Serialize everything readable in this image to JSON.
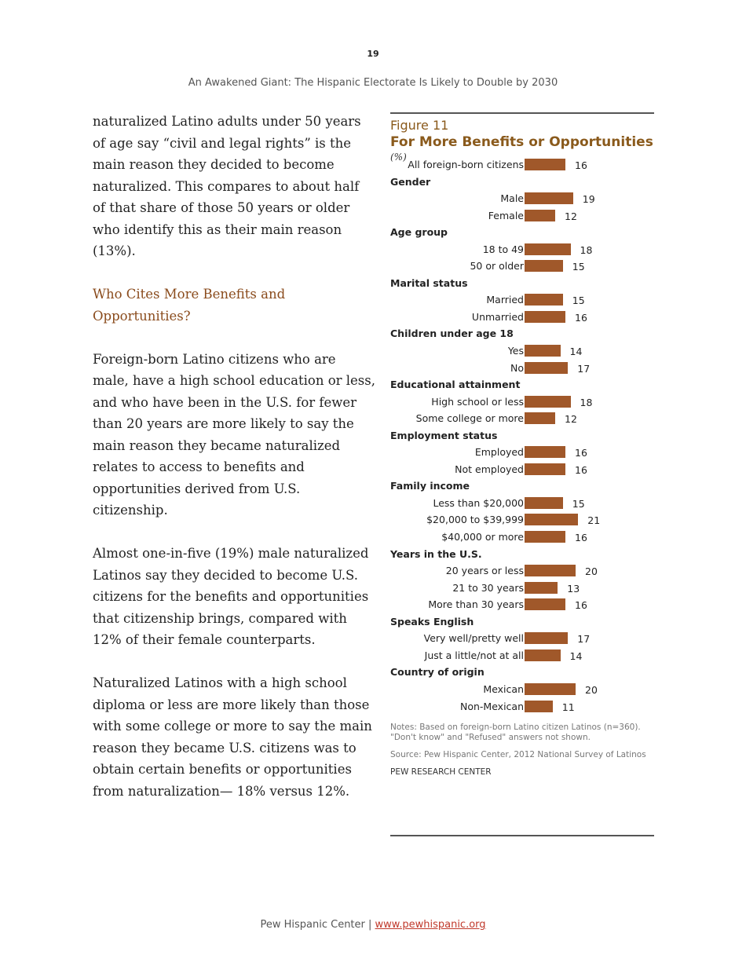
{
  "page_number": "19",
  "running_head": "An Awakened Giant: The Hispanic Electorate Is Likely to Double by 2030",
  "body": {
    "p1": "naturalized Latino adults under 50 years of age say “civil and legal rights” is the main reason they decided to become naturalized. This compares to about half of that share of those 50 years or older who identify this as their main reason (13%).",
    "subheading": "Who Cites More Benefits and Opportunities?",
    "p2": "Foreign-born Latino citizens who are male, have a high school education or less, and who have been in the U.S. for fewer than 20 years are more likely to say the main reason they became naturalized relates to access to benefits and opportunities derived from U.S. citizenship.",
    "p3": "Almost one-in-five (19%) male naturalized Latinos say they decided to become U.S. citizens for the benefits and opportunities that citizenship brings, compared with 12% of their female counterparts.",
    "p4": "Naturalized Latinos with a high school diploma or less are more likely than those with some college or more to say the main reason they became U.S. citizens was to obtain certain benefits or opportunities from naturalization— 18% versus 12%."
  },
  "figure": {
    "label": "Figure 11",
    "title": "For More Benefits or Opportunities",
    "unit": "(%)",
    "notes": "Notes: Based on foreign-born Latino citizen Latinos (n=360). \"Don't know\" and \"Refused\" answers not shown.",
    "source": "Source: Pew Hispanic Center, 2012 National Survey of Latinos",
    "org": "PEW RESEARCH CENTER"
  },
  "chart_data": {
    "type": "bar",
    "orientation": "horizontal",
    "bar_color": "#a0582a",
    "rows": [
      {
        "label": "All foreign-born citizens",
        "value": 16
      },
      {
        "header": "Gender"
      },
      {
        "label": "Male",
        "value": 19
      },
      {
        "label": "Female",
        "value": 12
      },
      {
        "header": "Age group"
      },
      {
        "label": "18 to 49",
        "value": 18
      },
      {
        "label": "50 or older",
        "value": 15
      },
      {
        "header": "Marital status"
      },
      {
        "label": "Married",
        "value": 15
      },
      {
        "label": "Unmarried",
        "value": 16
      },
      {
        "header": "Children under age 18"
      },
      {
        "label": "Yes",
        "value": 14
      },
      {
        "label": "No",
        "value": 17
      },
      {
        "header": "Educational attainment"
      },
      {
        "label": "High school or less",
        "value": 18
      },
      {
        "label": "Some college or more",
        "value": 12
      },
      {
        "header": "Employment status"
      },
      {
        "label": "Employed",
        "value": 16
      },
      {
        "label": "Not employed",
        "value": 16
      },
      {
        "header": "Family income"
      },
      {
        "label": "Less than $20,000",
        "value": 15
      },
      {
        "label": "$20,000 to $39,999",
        "value": 21
      },
      {
        "label": "$40,000 or more",
        "value": 16
      },
      {
        "header": "Years in the U.S."
      },
      {
        "label": "20 years or less",
        "value": 20
      },
      {
        "label": "21 to 30 years",
        "value": 13
      },
      {
        "label": "More than 30 years",
        "value": 16
      },
      {
        "header": "Speaks English"
      },
      {
        "label": "Very well/pretty well",
        "value": 17
      },
      {
        "label": "Just a little/not at all",
        "value": 14
      },
      {
        "header": "Country of origin"
      },
      {
        "label": "Mexican",
        "value": 20
      },
      {
        "label": "Non-Mexican",
        "value": 11
      }
    ]
  },
  "footer": {
    "org": "Pew Hispanic Center | ",
    "link": "www.pewhispanic.org"
  }
}
